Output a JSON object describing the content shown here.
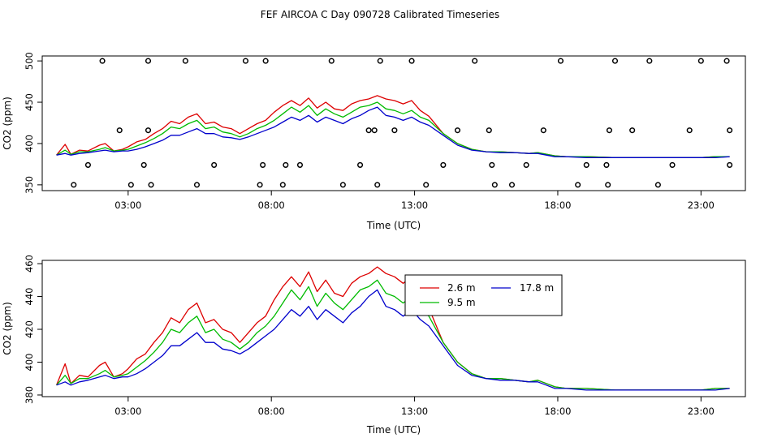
{
  "title": "FEF AIRCOA C  Day 090728  Calibrated Timeseries",
  "colors": {
    "tower_2_6m": "#dd0000",
    "tower_9_5m": "#00bb00",
    "tower_17_8m": "#0000cc",
    "frame": "#000000",
    "points": "#000000"
  },
  "chart_data": [
    {
      "type": "line+scatter",
      "xlabel": "Time (UTC)",
      "ylabel": "CO2 (ppm)",
      "xlim": [
        0.0,
        24.55
      ],
      "ylim": [
        343,
        506
      ],
      "xticks": [
        3,
        8,
        13,
        18,
        23
      ],
      "xtick_labels": [
        "03:00",
        "08:00",
        "13:00",
        "18:00",
        "23:00"
      ],
      "yticks": [
        350,
        400,
        450,
        500
      ],
      "ytick_labels": [
        "350",
        "400",
        "450",
        "500"
      ],
      "series": [
        {
          "name": "2.6 m",
          "color": "#dd0000",
          "x": [
            0.5,
            0.8,
            1.0,
            1.3,
            1.6,
            2.0,
            2.2,
            2.5,
            2.8,
            3.0,
            3.3,
            3.6,
            3.9,
            4.2,
            4.5,
            4.8,
            5.1,
            5.4,
            5.7,
            6.0,
            6.3,
            6.6,
            6.9,
            7.2,
            7.5,
            7.8,
            8.1,
            8.4,
            8.7,
            9.0,
            9.3,
            9.6,
            9.9,
            10.2,
            10.5,
            10.8,
            11.1,
            11.4,
            11.7,
            12.0,
            12.3,
            12.6,
            12.9,
            13.2,
            13.5,
            14.0,
            14.5,
            15.0,
            15.5,
            16.0,
            16.5,
            17.0,
            17.3,
            17.6,
            17.9,
            18.3,
            19.0,
            20.0,
            21.0,
            22.0,
            23.0,
            23.5,
            24.0
          ],
          "y": [
            386,
            399,
            387,
            392,
            391,
            398,
            400,
            391,
            393,
            396,
            402,
            405,
            412,
            418,
            427,
            424,
            432,
            436,
            424,
            426,
            420,
            418,
            412,
            418,
            424,
            428,
            438,
            446,
            452,
            446,
            455,
            443,
            450,
            442,
            440,
            448,
            452,
            454,
            458,
            454,
            452,
            448,
            452,
            440,
            433,
            412,
            400,
            393,
            390,
            390,
            389,
            388,
            389,
            387,
            385,
            384,
            384,
            383,
            383,
            383,
            383,
            384,
            384
          ]
        },
        {
          "name": "9.5 m",
          "color": "#00bb00",
          "x": [
            0.5,
            0.8,
            1.0,
            1.3,
            1.6,
            2.0,
            2.2,
            2.5,
            2.8,
            3.0,
            3.3,
            3.6,
            3.9,
            4.2,
            4.5,
            4.8,
            5.1,
            5.4,
            5.7,
            6.0,
            6.3,
            6.6,
            6.9,
            7.2,
            7.5,
            7.8,
            8.1,
            8.4,
            8.7,
            9.0,
            9.3,
            9.6,
            9.9,
            10.2,
            10.5,
            10.8,
            11.1,
            11.4,
            11.7,
            12.0,
            12.3,
            12.6,
            12.9,
            13.2,
            13.5,
            14.0,
            14.5,
            15.0,
            15.5,
            16.0,
            16.5,
            17.0,
            17.3,
            17.6,
            17.9,
            18.3,
            19.0,
            20.0,
            21.0,
            22.0,
            23.0,
            23.5,
            24.0
          ],
          "y": [
            386,
            392,
            387,
            390,
            390,
            393,
            395,
            391,
            392,
            393,
            397,
            401,
            406,
            412,
            420,
            418,
            424,
            428,
            418,
            420,
            414,
            412,
            408,
            412,
            418,
            422,
            428,
            436,
            444,
            438,
            446,
            434,
            442,
            436,
            432,
            438,
            444,
            446,
            450,
            442,
            440,
            436,
            440,
            432,
            428,
            412,
            400,
            393,
            390,
            390,
            389,
            388,
            389,
            387,
            385,
            384,
            384,
            383,
            383,
            383,
            383,
            384,
            384
          ]
        },
        {
          "name": "17.8 m",
          "color": "#0000cc",
          "x": [
            0.5,
            0.8,
            1.0,
            1.3,
            1.6,
            2.0,
            2.2,
            2.5,
            2.8,
            3.0,
            3.3,
            3.6,
            3.9,
            4.2,
            4.5,
            4.8,
            5.1,
            5.4,
            5.7,
            6.0,
            6.3,
            6.6,
            6.9,
            7.2,
            7.5,
            7.8,
            8.1,
            8.4,
            8.7,
            9.0,
            9.3,
            9.6,
            9.9,
            10.2,
            10.5,
            10.8,
            11.1,
            11.4,
            11.7,
            12.0,
            12.3,
            12.6,
            12.9,
            13.2,
            13.5,
            14.0,
            14.5,
            15.0,
            15.5,
            16.0,
            16.5,
            17.0,
            17.3,
            17.6,
            17.9,
            18.3,
            19.0,
            20.0,
            21.0,
            22.0,
            23.0,
            23.5,
            24.0
          ],
          "y": [
            386,
            388,
            386,
            388,
            389,
            391,
            392,
            390,
            391,
            391,
            393,
            396,
            400,
            404,
            410,
            410,
            414,
            418,
            412,
            412,
            408,
            407,
            405,
            408,
            412,
            416,
            420,
            426,
            432,
            428,
            434,
            426,
            432,
            428,
            424,
            430,
            434,
            440,
            444,
            434,
            432,
            428,
            432,
            426,
            422,
            410,
            398,
            392,
            390,
            389,
            389,
            388,
            388,
            386,
            384,
            384,
            383,
            383,
            383,
            383,
            383,
            383,
            384
          ]
        },
        {
          "name": "calibration-points",
          "type": "scatter",
          "color": "#000000",
          "x": [
            1.1,
            1.6,
            2.1,
            2.7,
            3.1,
            3.55,
            3.7,
            3.7,
            3.8,
            5.0,
            5.4,
            6.0,
            7.1,
            7.6,
            7.7,
            7.8,
            8.4,
            8.5,
            9.0,
            10.1,
            10.5,
            11.1,
            11.4,
            11.6,
            11.7,
            11.8,
            12.3,
            12.9,
            13.4,
            14.0,
            14.5,
            15.1,
            15.6,
            15.7,
            15.8,
            16.4,
            16.9,
            17.5,
            18.1,
            18.7,
            19.0,
            19.7,
            19.75,
            19.8,
            20.0,
            20.6,
            21.2,
            21.5,
            22.0,
            22.6,
            23.0,
            23.9,
            24.0,
            24.0
          ],
          "y": [
            350,
            374,
            500,
            416,
            350,
            374,
            416,
            500,
            350,
            500,
            350,
            374,
            500,
            350,
            374,
            500,
            350,
            374,
            374,
            500,
            350,
            374,
            416,
            416,
            350,
            500,
            416,
            500,
            350,
            374,
            416,
            500,
            416,
            374,
            350,
            350,
            374,
            416,
            500,
            350,
            374,
            374,
            350,
            416,
            500,
            416,
            500,
            350,
            374,
            416,
            500,
            500,
            416,
            374
          ]
        }
      ]
    },
    {
      "type": "line",
      "xlabel": "Time (UTC)",
      "ylabel": "CO2 (ppm)",
      "xlim": [
        0.0,
        24.55
      ],
      "ylim": [
        379,
        462
      ],
      "xticks": [
        3,
        8,
        13,
        18,
        23
      ],
      "xtick_labels": [
        "03:00",
        "08:00",
        "13:00",
        "18:00",
        "23:00"
      ],
      "yticks": [
        380,
        400,
        420,
        440,
        460
      ],
      "ytick_labels": [
        "380",
        "400",
        "420",
        "440",
        "460"
      ],
      "legend": {
        "position": "top-center",
        "entries": [
          "2.6 m",
          "17.8 m",
          "9.5 m"
        ]
      },
      "series_ref": "same as panel 1 tower series"
    }
  ]
}
